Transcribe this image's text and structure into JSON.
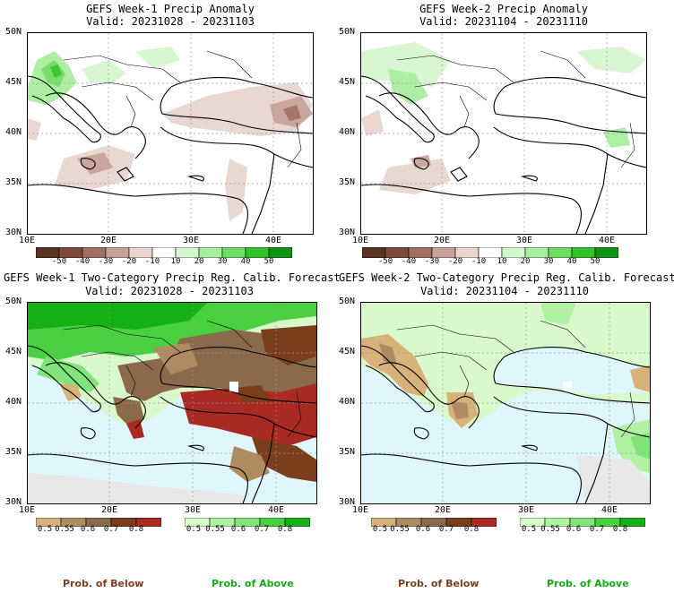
{
  "panels": [
    {
      "title": "GEFS Week-1 Precip Anomaly",
      "valid": "Valid: 20231028 - 20231103"
    },
    {
      "title": "GEFS Week-2 Precip Anomaly",
      "valid": "Valid: 20231104 - 20231110"
    },
    {
      "title": "GEFS Week-1 Two-Category Precip Reg. Calib. Forecast",
      "valid": "Valid: 20231028 - 20231103"
    },
    {
      "title": "GEFS Week-2 Two-Category Precip Reg. Calib. Forecast",
      "valid": "Valid: 20231104 - 20231110"
    }
  ],
  "lat_labels": [
    "50N",
    "45N",
    "40N",
    "35N",
    "30N"
  ],
  "lon_labels": [
    "10E",
    "20E",
    "30E",
    "40E"
  ],
  "anomaly_colorbar": {
    "labels": [
      "-50",
      "-40",
      "-30",
      "-20",
      "-10",
      "10",
      "20",
      "30",
      "40",
      "50"
    ],
    "colors": [
      "#5a3220",
      "#7b4a3a",
      "#a06e62",
      "#c8a299",
      "#e8d5cf",
      "#ffffff",
      "#d6f6d0",
      "#a9eea0",
      "#6fdc62",
      "#34c22a",
      "#129412"
    ]
  },
  "prob_below_colorbar": {
    "labels": [
      "0.5",
      "0.55",
      "0.6",
      "0.7",
      "0.8"
    ],
    "colors": [
      "#d8b27a",
      "#b08a60",
      "#8a6a4a",
      "#7a3e1c",
      "#a82a22"
    ]
  },
  "prob_above_colorbar": {
    "labels": [
      "0.5",
      "0.55",
      "0.6",
      "0.7",
      "0.8"
    ],
    "colors": [
      "#d8fcc8",
      "#b0f2a2",
      "#80e47a",
      "#48d040",
      "#14b014"
    ]
  },
  "legend": {
    "below": "Prob. of Below",
    "above": "Prob. of Above",
    "below_color": "#7a3e1c",
    "above_color": "#18a818"
  },
  "colors": {
    "sea": "#dff7fc",
    "land_light_green": "#d9f8cc",
    "gray_nodata": "#e8e8e8"
  }
}
